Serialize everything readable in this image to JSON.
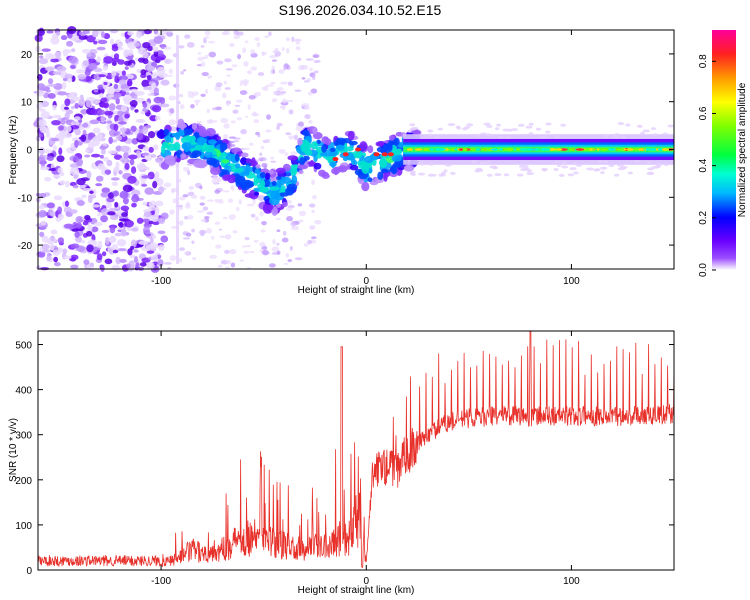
{
  "title": "S196.2026.034.10.52.E15",
  "chart_data": [
    {
      "type": "heatmap",
      "xlabel": "Height of straight line (km)",
      "ylabel": "Frequency (Hz)",
      "xlim": [
        -160,
        150
      ],
      "ylim": [
        -25,
        25
      ],
      "xticks": [
        "-100",
        "0",
        "100"
      ],
      "xtick_values": [
        -100,
        0,
        100
      ],
      "yticks": [
        "20",
        "10",
        "0",
        "-10",
        "-20"
      ],
      "ytick_values": [
        20,
        10,
        0,
        -10,
        -20
      ],
      "colorbar": {
        "label": "Normalized spectral amplitude",
        "range": [
          0,
          0.92
        ],
        "ticks": [
          "0.8",
          "0.6",
          "0.4",
          "0.2",
          "0.0"
        ],
        "tick_values": [
          0.8,
          0.6,
          0.4,
          0.2,
          0.0
        ]
      },
      "ridge": {
        "x": [
          -102,
          -95,
          -88,
          -82,
          -75,
          -70,
          -65,
          -60,
          -55,
          -50,
          -45,
          -40,
          -35,
          -30,
          -25,
          -20,
          -15,
          -10,
          -5,
          0,
          5,
          10,
          15,
          20,
          30,
          50,
          80,
          110,
          150
        ],
        "freq": [
          0,
          1,
          2,
          0.5,
          0,
          -2,
          -3,
          -5,
          -6,
          -8,
          -9,
          -8,
          -5,
          1,
          0,
          -2,
          -1,
          0,
          -1,
          -4,
          -3,
          -2,
          -1,
          0,
          0,
          0,
          0,
          0,
          0
        ]
      }
    },
    {
      "type": "line",
      "xlabel": "Height of straight line (km)",
      "ylabel": "SNR (10 * v/v)",
      "xlim": [
        -160,
        150
      ],
      "ylim": [
        0,
        530
      ],
      "xticks": [
        "-100",
        "0",
        "100"
      ],
      "xtick_values": [
        -100,
        0,
        100
      ],
      "yticks": [
        "500",
        "400",
        "300",
        "200",
        "100",
        "0"
      ],
      "ytick_values": [
        500,
        400,
        300,
        200,
        100,
        0
      ],
      "series": [
        {
          "name": "SNR",
          "color": "#e8302a",
          "envelope_x": [
            -160,
            -130,
            -100,
            -90,
            -85,
            -80,
            -70,
            -60,
            -50,
            -40,
            -30,
            -20,
            -12,
            -8,
            -5,
            -2,
            0,
            3,
            8,
            15,
            20,
            30,
            40,
            50,
            60,
            80,
            100,
            120,
            150
          ],
          "envelope_y": [
            20,
            20,
            20,
            40,
            60,
            50,
            60,
            100,
            90,
            70,
            60,
            80,
            100,
            100,
            140,
            180,
            15,
            230,
            250,
            240,
            280,
            330,
            360,
            370,
            375,
            375,
            375,
            375,
            380
          ]
        }
      ]
    }
  ]
}
